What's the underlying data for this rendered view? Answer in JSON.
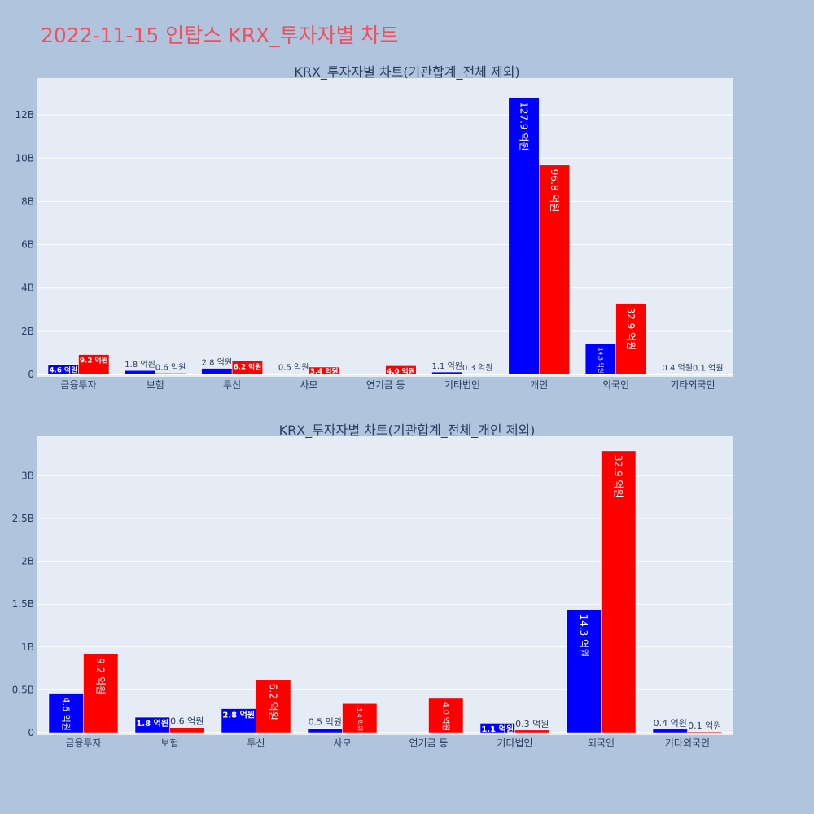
{
  "title": "2022-11-15 인탑스 KRX_투자자별 차트",
  "colors": {
    "buy": "#0000ff",
    "sell": "#ff0000",
    "plot_bg": "#e5ecf6",
    "title": "#ef4f5f"
  },
  "chart_data": [
    {
      "type": "bar",
      "title": "KRX_투자자별 차트(기관합계_전체 제외)",
      "categories": [
        "금융투자",
        "보험",
        "투신",
        "사모",
        "연기금 등",
        "기타법인",
        "개인",
        "외국인",
        "기타외국인"
      ],
      "series": [
        {
          "values": [
            460000000,
            180000000,
            280000000,
            50000000,
            0,
            110000000,
            12790000000,
            1430000000,
            40000000
          ],
          "labels": [
            "4.6 억원",
            "1.8 억원",
            "2.8 억원",
            "0.5 억원",
            "",
            "1.1 억원",
            "127.9 억원",
            "14.3 억원",
            "0.4 억원"
          ]
        },
        {
          "values": [
            920000000,
            60000000,
            620000000,
            340000000,
            400000000,
            30000000,
            9680000000,
            3290000000,
            10000000
          ],
          "labels": [
            "9.2 억원",
            "0.6 억원",
            "6.2 억원",
            "3.4 억원",
            "4.0 억원",
            "0.3 억원",
            "96.8 억원",
            "32.9 억원",
            "0.1 억원"
          ]
        }
      ],
      "ylim": [
        0,
        13700000000
      ],
      "yticks": [
        0,
        2000000000,
        4000000000,
        6000000000,
        8000000000,
        10000000000,
        12000000000
      ],
      "ytick_labels": [
        "0",
        "2B",
        "4B",
        "6B",
        "8B",
        "10B",
        "12B"
      ]
    },
    {
      "type": "bar",
      "title": "KRX_투자자별 차트(기관합계_전체_개인 제외)",
      "categories": [
        "금융투자",
        "보험",
        "투신",
        "사모",
        "연기금 등",
        "기타법인",
        "외국인",
        "기타외국인"
      ],
      "series": [
        {
          "values": [
            460000000,
            180000000,
            280000000,
            50000000,
            0,
            110000000,
            1430000000,
            40000000
          ],
          "labels": [
            "4.6 억원",
            "1.8 억원",
            "2.8 억원",
            "0.5 억원",
            "",
            "1.1 억원",
            "14.3 억원",
            "0.4 억원"
          ]
        },
        {
          "values": [
            920000000,
            60000000,
            620000000,
            340000000,
            400000000,
            30000000,
            3290000000,
            10000000
          ],
          "labels": [
            "9.2 억원",
            "0.6 억원",
            "6.2 억원",
            "3.4 억원",
            "4.0 억원",
            "0.3 억원",
            "32.9 억원",
            "0.1 억원"
          ]
        }
      ],
      "ylim": [
        0,
        3460000000
      ],
      "yticks": [
        0,
        500000000,
        1000000000,
        1500000000,
        2000000000,
        2500000000,
        3000000000
      ],
      "ytick_labels": [
        "0",
        "0.5B",
        "1B",
        "1.5B",
        "2B",
        "2.5B",
        "3B"
      ]
    }
  ]
}
